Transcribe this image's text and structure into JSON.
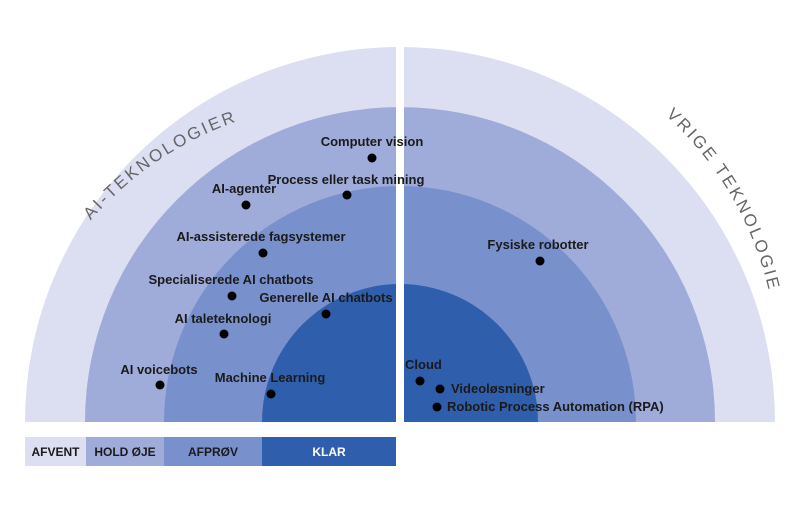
{
  "colors": {
    "ring_afvent": "#dcdef2",
    "ring_hold_oeje": "#9fabd9",
    "ring_afproev": "#7891cd",
    "ring_klar": "#2f5fac",
    "dot": "#000000",
    "side_title": "#666666"
  },
  "side_titles": {
    "left": "AI-TEKNOLOGIER",
    "right": "ØVRIGE TEKNOLOGIER"
  },
  "legend": [
    {
      "key": "afvent",
      "label": "AFVENT"
    },
    {
      "key": "hold_oeje",
      "label": "HOLD ØJE"
    },
    {
      "key": "afproev",
      "label": "AFPRØV"
    },
    {
      "key": "klar",
      "label": "KLAR"
    }
  ],
  "technologies": [
    {
      "label": "Computer vision",
      "sector": "AI-TEKNOLOGIER",
      "ring": "HOLD ØJE"
    },
    {
      "label": "Process eller task mining",
      "sector": "AI-TEKNOLOGIER",
      "ring": "AFPRØV"
    },
    {
      "label": "AI-agenter",
      "sector": "AI-TEKNOLOGIER",
      "ring": "HOLD ØJE"
    },
    {
      "label": "AI-assisterede fagsystemer",
      "sector": "AI-TEKNOLOGIER",
      "ring": "AFPRØV"
    },
    {
      "label": "Specialiserede AI chatbots",
      "sector": "AI-TEKNOLOGIER",
      "ring": "AFPRØV"
    },
    {
      "label": "Generelle AI chatbots",
      "sector": "AI-TEKNOLOGIER",
      "ring": "KLAR"
    },
    {
      "label": "AI taleteknologi",
      "sector": "AI-TEKNOLOGIER",
      "ring": "AFPRØV"
    },
    {
      "label": "AI voicebots",
      "sector": "AI-TEKNOLOGIER",
      "ring": "HOLD ØJE"
    },
    {
      "label": "Machine Learning",
      "sector": "AI-TEKNOLOGIER",
      "ring": "KLAR"
    },
    {
      "label": "Fysiske robotter",
      "sector": "ØVRIGE TEKNOLOGIER",
      "ring": "HOLD ØJE"
    },
    {
      "label": "Cloud",
      "sector": "ØVRIGE TEKNOLOGIER",
      "ring": "KLAR"
    },
    {
      "label": "Videoløsninger",
      "sector": "ØVRIGE TEKNOLOGIER",
      "ring": "KLAR"
    },
    {
      "label": "Robotic Process Automation (RPA)",
      "sector": "ØVRIGE TEKNOLOGIER",
      "ring": "KLAR"
    }
  ]
}
